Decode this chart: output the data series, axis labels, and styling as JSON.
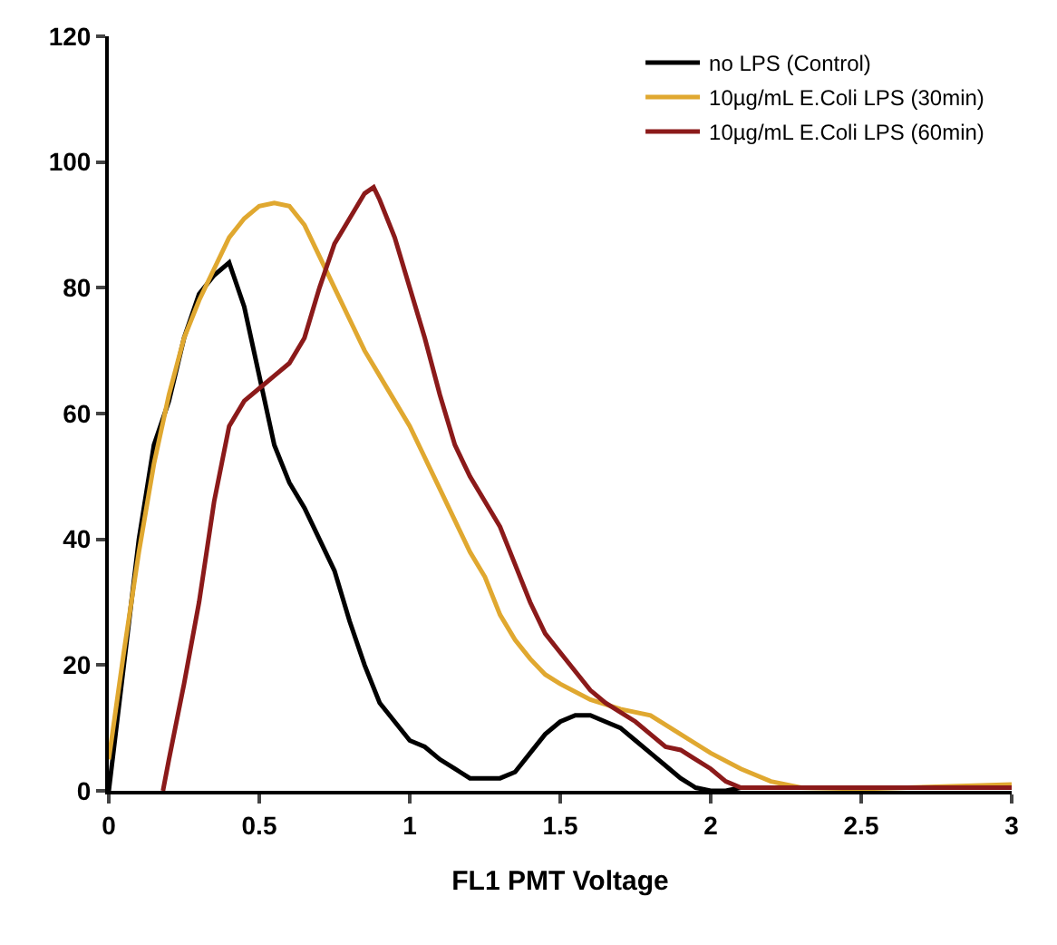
{
  "chart_data": {
    "type": "line",
    "xlabel": "FL1 PMT Voltage",
    "xlim": [
      0,
      3
    ],
    "xticks": [
      0,
      0.5,
      1,
      1.5,
      2,
      2.5,
      3
    ],
    "ylim": [
      0,
      120
    ],
    "yticks": [
      0,
      20,
      40,
      60,
      80,
      100,
      120
    ],
    "grid": false,
    "legend": "top right",
    "marker": "none",
    "line_style": "solid",
    "series": [
      {
        "name": "no LPS (Control)",
        "color": "#000000",
        "x": [
          0,
          0.05,
          0.1,
          0.15,
          0.2,
          0.25,
          0.3,
          0.35,
          0.4,
          0.45,
          0.5,
          0.55,
          0.6,
          0.65,
          0.7,
          0.75,
          0.8,
          0.85,
          0.9,
          0.95,
          1.0,
          1.05,
          1.1,
          1.15,
          1.2,
          1.25,
          1.3,
          1.35,
          1.4,
          1.45,
          1.5,
          1.55,
          1.6,
          1.65,
          1.7,
          1.75,
          1.8,
          1.85,
          1.9,
          1.95,
          2.0,
          2.05,
          2.1
        ],
        "values": [
          0,
          20,
          40,
          55,
          62,
          72,
          79,
          82,
          84,
          77,
          66,
          55,
          49,
          45,
          40,
          35,
          27,
          20,
          14,
          11,
          8,
          7,
          5,
          3.5,
          2,
          2,
          2,
          3,
          6,
          9,
          11,
          12,
          12,
          11,
          10,
          8,
          6,
          4,
          2,
          0.5,
          0,
          0,
          0.5
        ]
      },
      {
        "name": "10µg/mL E.Coli LPS (30min)",
        "color": "#e0a830",
        "x": [
          0,
          0.05,
          0.1,
          0.15,
          0.2,
          0.25,
          0.3,
          0.35,
          0.4,
          0.45,
          0.5,
          0.55,
          0.6,
          0.65,
          0.7,
          0.75,
          0.8,
          0.85,
          0.9,
          0.95,
          1.0,
          1.05,
          1.1,
          1.15,
          1.2,
          1.25,
          1.3,
          1.35,
          1.4,
          1.45,
          1.5,
          1.6,
          1.7,
          1.8,
          1.9,
          2.0,
          2.1,
          2.2,
          2.3,
          2.5,
          3.0
        ],
        "values": [
          5,
          22,
          38,
          52,
          63,
          72,
          78,
          83,
          88,
          91,
          93,
          93.5,
          93,
          90,
          85,
          80,
          75,
          70,
          66,
          62,
          58,
          53,
          48,
          43,
          38,
          34,
          28,
          24,
          21,
          18.5,
          17,
          14.5,
          13,
          12,
          9,
          6,
          3.5,
          1.5,
          0.5,
          0.3,
          1
        ]
      },
      {
        "name": "10µg/mL E.Coli LPS (60min)",
        "color": "#8b1a1a",
        "x": [
          0.18,
          0.2,
          0.25,
          0.3,
          0.35,
          0.4,
          0.45,
          0.5,
          0.55,
          0.6,
          0.65,
          0.7,
          0.75,
          0.8,
          0.85,
          0.88,
          0.9,
          0.95,
          1.0,
          1.05,
          1.1,
          1.15,
          1.2,
          1.25,
          1.3,
          1.35,
          1.4,
          1.45,
          1.5,
          1.55,
          1.6,
          1.65,
          1.7,
          1.75,
          1.8,
          1.85,
          1.9,
          1.95,
          2.0,
          2.05,
          2.1,
          2.2,
          2.5,
          3.0
        ],
        "values": [
          0,
          5,
          17,
          30,
          46,
          58,
          62,
          64,
          66,
          68,
          72,
          80,
          87,
          91,
          95,
          96,
          94,
          88,
          80,
          72,
          63,
          55,
          50,
          46,
          42,
          36,
          30,
          25,
          22,
          19,
          16,
          14,
          12.5,
          11,
          9,
          7,
          6.5,
          5,
          3.5,
          1.5,
          0.5,
          0.5,
          0.5,
          0.5
        ]
      }
    ]
  }
}
